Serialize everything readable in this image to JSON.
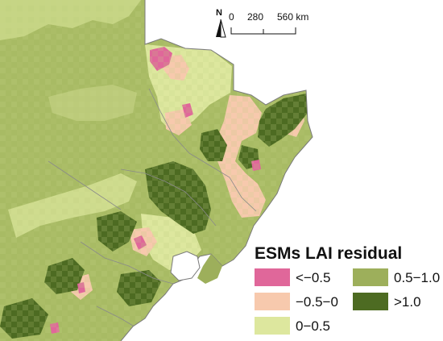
{
  "map": {
    "legend_title": "ESMs LAI residual",
    "classes": [
      {
        "label": "<−0.5",
        "color": "#e0679a"
      },
      {
        "label": "−0.5−0",
        "color": "#f7c9ad"
      },
      {
        "label": "0−0.5",
        "color": "#dde79e"
      },
      {
        "label": "0.5−1.0",
        "color": "#9daf5b"
      },
      {
        "label": ">1.0",
        "color": "#4d6b22"
      }
    ],
    "north_label": "N",
    "scale": {
      "labels": [
        "0",
        "280",
        "560 km"
      ]
    }
  }
}
